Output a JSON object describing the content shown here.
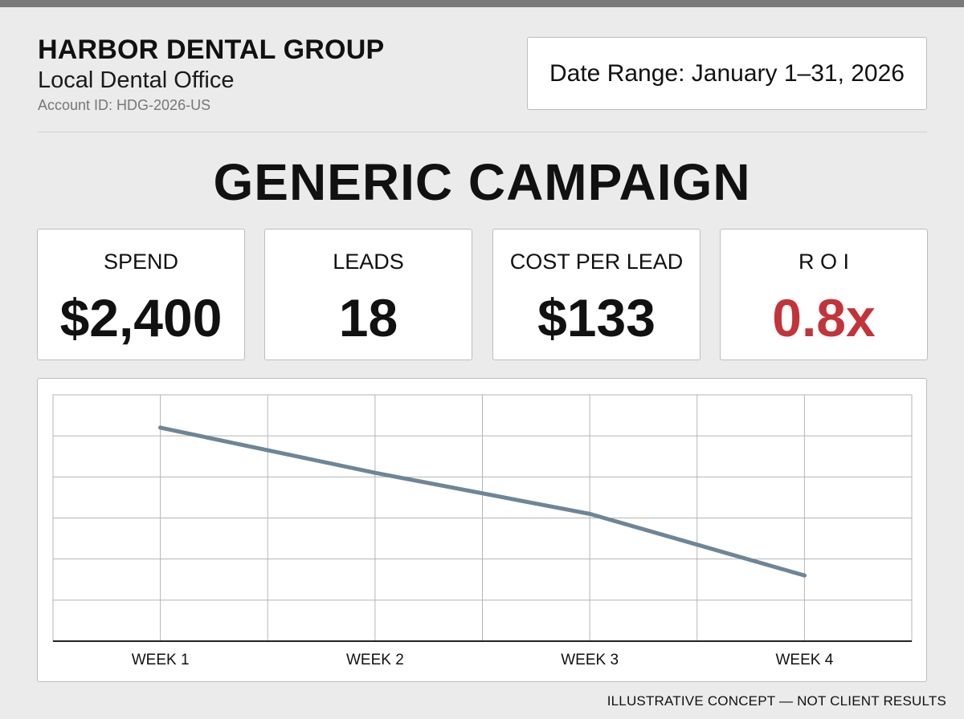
{
  "header": {
    "company_name": "HARBOR DENTAL GROUP",
    "office_type": "Local Dental Office",
    "account_id": "Account ID: HDG-2026-US"
  },
  "date_range": "Date Range: January 1–31, 2026",
  "campaign_title": "GENERIC CAMPAIGN",
  "kpis": [
    {
      "label": "SPEND",
      "value": "$2,400"
    },
    {
      "label": "LEADS",
      "value": "18"
    },
    {
      "label": "COST PER LEAD",
      "value": "$133"
    },
    {
      "label": "R O I",
      "value": "0.8x",
      "color": "#c2343a"
    }
  ],
  "chart_data": {
    "type": "line",
    "categories": [
      "WEEK 1",
      "WEEK 2",
      "WEEK 3",
      "WEEK 4"
    ],
    "series": [
      {
        "values": [
          5.2,
          4.1,
          3.1,
          1.6
        ]
      }
    ],
    "ylim": [
      0,
      6
    ],
    "grid": true,
    "line_color": "#6f8597"
  },
  "footer_note": "ILLUSTRATIVE CONCEPT — NOT CLIENT RESULTS"
}
